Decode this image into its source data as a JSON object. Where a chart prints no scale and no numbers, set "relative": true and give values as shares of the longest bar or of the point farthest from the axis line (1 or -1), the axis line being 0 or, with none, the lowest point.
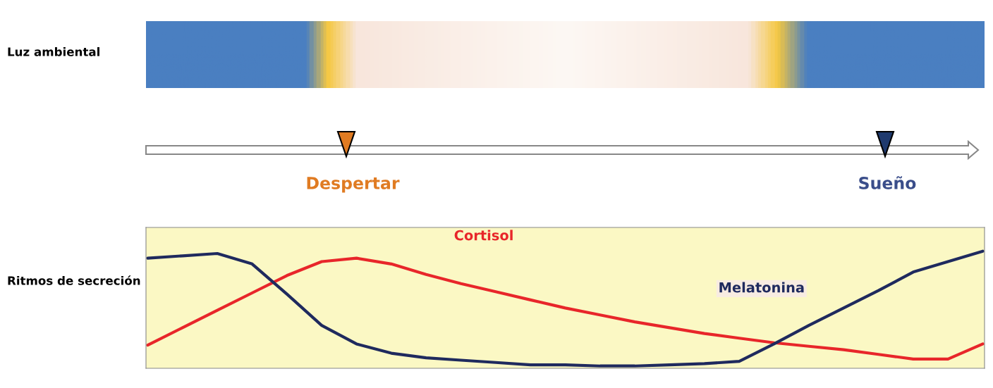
{
  "chart_data": {
    "type": "line",
    "relative": true,
    "categories": [
      null,
      null,
      null,
      null,
      null,
      null,
      null,
      null,
      null,
      null,
      null,
      null,
      null,
      null,
      null,
      null,
      null,
      null,
      null,
      null,
      null,
      null,
      null,
      null,
      null
    ],
    "series": [
      {
        "name": "Cortisol",
        "color": "#e8262a",
        "values": [
          0.19,
          0.34,
          0.49,
          0.64,
          0.79,
          0.91,
          0.94,
          0.89,
          0.8,
          0.72,
          0.65,
          0.58,
          0.51,
          0.45,
          0.39,
          0.34,
          0.29,
          0.25,
          0.21,
          0.18,
          0.15,
          0.11,
          0.07,
          0.07,
          0.2
        ]
      },
      {
        "name": "Melatonina",
        "color": "#1f2a5e",
        "values": [
          0.94,
          0.96,
          0.98,
          0.89,
          0.63,
          0.36,
          0.2,
          0.12,
          0.08,
          0.06,
          0.04,
          0.02,
          0.02,
          0.01,
          0.01,
          0.02,
          0.03,
          0.05,
          0.2,
          0.36,
          0.51,
          0.66,
          0.82,
          0.91,
          1.0
        ]
      }
    ],
    "annotations": [
      "Luz ambiental",
      "Despertar",
      "Sueño",
      "Ritmos de secreción"
    ],
    "legend": false,
    "marker": "none",
    "line_style": "solid"
  }
}
